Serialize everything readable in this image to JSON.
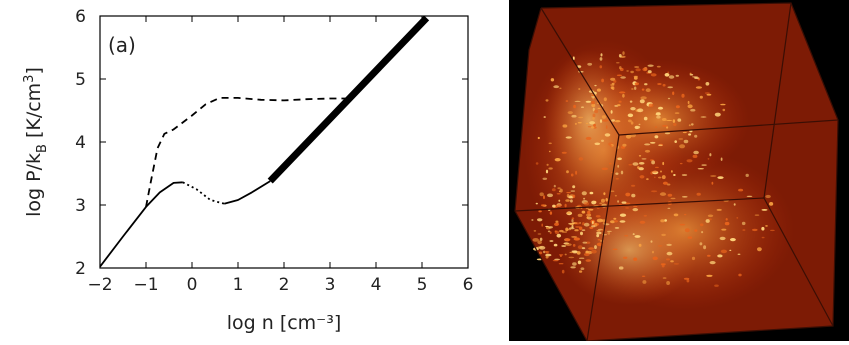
{
  "panel_label": "(a)",
  "chart_data": {
    "type": "line",
    "xlabel": "log n [cm⁻³]",
    "ylabel_parts": [
      "log P/k",
      "B",
      " [K/cm",
      "3",
      "]"
    ],
    "xlim": [
      -2,
      6
    ],
    "ylim": [
      2,
      6
    ],
    "xticks": [
      -2,
      -1,
      0,
      1,
      2,
      3,
      4,
      5,
      6
    ],
    "yticks": [
      2,
      3,
      4,
      5,
      6
    ],
    "xtick_labels": [
      "−2",
      "−1",
      "0",
      "1",
      "2",
      "3",
      "4",
      "5",
      "6"
    ],
    "ytick_labels": [
      "2",
      "3",
      "4",
      "5",
      "6"
    ],
    "grid": false,
    "series": [
      {
        "style": "solid-thin",
        "x": [
          -2.0,
          -1.5,
          -1.0,
          -0.7,
          -0.4,
          -0.2
        ],
        "y": [
          2.02,
          2.5,
          2.97,
          3.2,
          3.35,
          3.36
        ]
      },
      {
        "style": "dotted",
        "x": [
          -0.2,
          0.1,
          0.4,
          0.7
        ],
        "y": [
          3.36,
          3.25,
          3.08,
          3.02
        ]
      },
      {
        "style": "solid-thin",
        "x": [
          0.7,
          1.0,
          1.3,
          1.7
        ],
        "y": [
          3.02,
          3.08,
          3.2,
          3.38
        ]
      },
      {
        "style": "solid-thick",
        "x": [
          1.7,
          5.1
        ],
        "y": [
          3.38,
          5.97
        ]
      },
      {
        "style": "dashed",
        "x": [
          -1.0,
          -0.9,
          -0.75,
          -0.6,
          -0.4,
          0.0,
          0.3,
          0.6,
          1.0,
          1.5,
          2.0,
          2.5,
          3.0,
          3.5
        ],
        "y": [
          2.97,
          3.35,
          3.9,
          4.13,
          4.2,
          4.42,
          4.6,
          4.7,
          4.7,
          4.67,
          4.66,
          4.68,
          4.69,
          4.69
        ]
      }
    ]
  },
  "render": {
    "background": "#000000",
    "cube_face_color": "#8a1f06",
    "emission_colors": [
      "#c8320a",
      "#e8641c",
      "#f7a040",
      "#ffd47a"
    ],
    "edge_color": "#3a0e04"
  }
}
